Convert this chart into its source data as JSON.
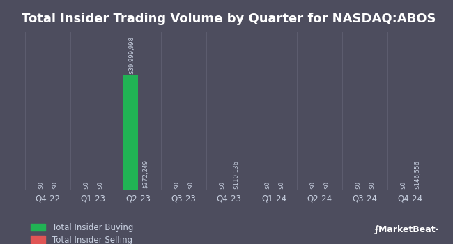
{
  "title": "Total Insider Trading Volume by Quarter for NASDAQ:ABOS",
  "quarters": [
    "Q4-22",
    "Q1-23",
    "Q2-23",
    "Q3-23",
    "Q4-23",
    "Q1-24",
    "Q2-24",
    "Q3-24",
    "Q4-24"
  ],
  "buying": [
    0,
    0,
    39999998,
    0,
    0,
    0,
    0,
    0,
    0
  ],
  "selling": [
    0,
    0,
    272249,
    0,
    110136,
    0,
    0,
    0,
    146556
  ],
  "buying_labels": [
    "$0",
    "$0",
    "$39,999,998",
    "$0",
    "$0",
    "$0",
    "$0",
    "$0",
    "$0"
  ],
  "selling_labels": [
    "$0",
    "$0",
    "$272,249",
    "$0",
    "$110,136",
    "$0",
    "$0",
    "$0",
    "$146,556"
  ],
  "buying_color": "#21b354",
  "selling_color": "#e05555",
  "bg_color": "#4d4d5e",
  "text_color": "#ffffff",
  "label_color": "#c8d0e0",
  "grid_color": "#5c5c6e",
  "bar_width": 0.32,
  "title_fontsize": 13,
  "label_fontsize": 6.2,
  "tick_fontsize": 8.5,
  "legend_fontsize": 8.5,
  "marketbeat_fontsize": 9
}
